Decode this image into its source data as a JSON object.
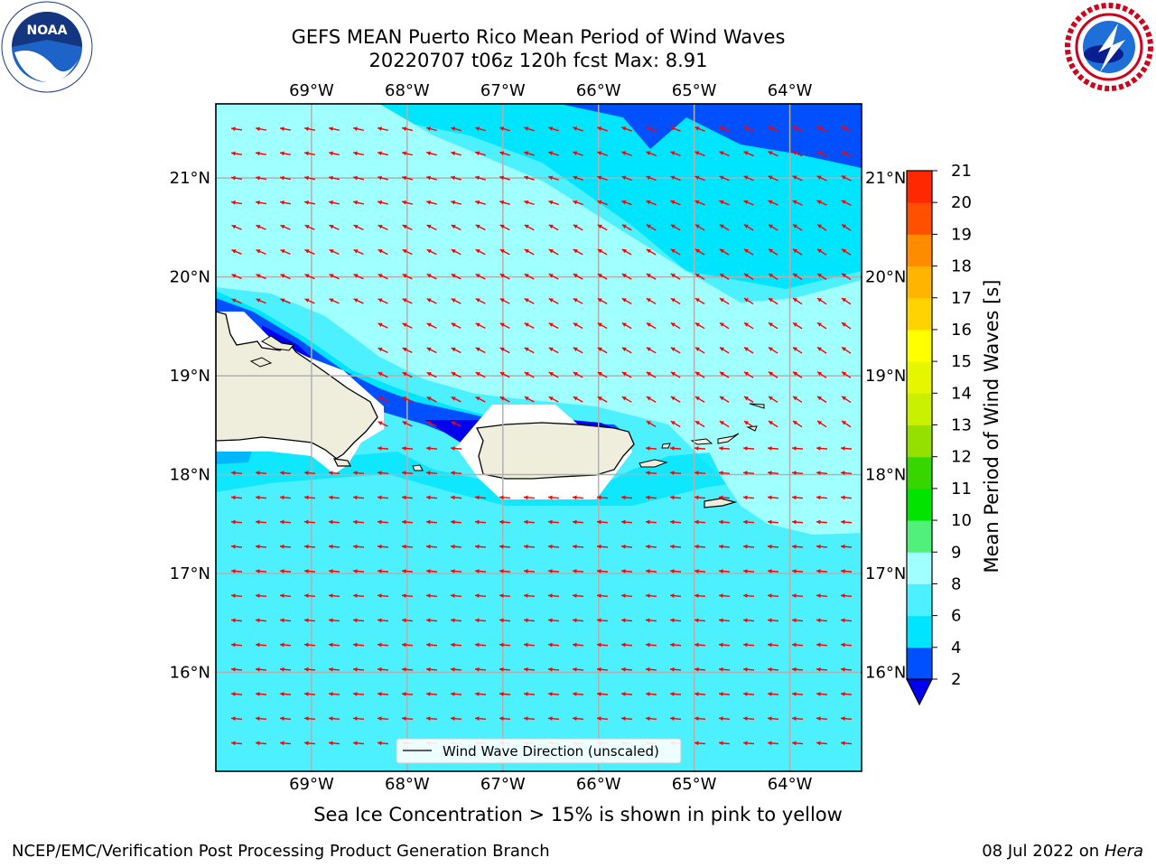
{
  "header": {
    "title_line1": "GEFS MEAN Puerto Rico Mean Period of Wind Waves",
    "title_line2": "20220707 t06z 120h fcst   Max: 8.91"
  },
  "logos": {
    "left": {
      "icon": "noaa-logo",
      "text": "NOAA"
    },
    "right": {
      "icon": "national-weather-service-logo",
      "text": "NATIONAL WEATHER SERVICE"
    }
  },
  "map": {
    "lon_labels": [
      "69°W",
      "68°W",
      "67°W",
      "66°W",
      "65°W",
      "64°W"
    ],
    "lat_labels": [
      "21°N",
      "20°N",
      "19°N",
      "18°N",
      "17°N",
      "16°N"
    ],
    "lon_range": [
      -70.0,
      -63.25
    ],
    "lat_range": [
      15.0,
      21.75
    ],
    "legend_label": "Wind Wave Direction (unscaled)",
    "arrow_color": "#ff0000",
    "land_color": "#efeddc",
    "grid_color": "#b0b0b0"
  },
  "colorbar": {
    "label": "Mean Period of Wind Waves [s]",
    "ticks": [
      "2",
      "4",
      "6",
      "8",
      "9",
      "10",
      "11",
      "12",
      "13",
      "14",
      "15",
      "16",
      "17",
      "18",
      "19",
      "20",
      "21"
    ],
    "colors": [
      "#0050ff",
      "#00e5ff",
      "#4cf0ff",
      "#a0ffff",
      "#50f07a",
      "#00e400",
      "#38d600",
      "#96e000",
      "#c8f000",
      "#e6f500",
      "#ffff00",
      "#ffd200",
      "#ffb400",
      "#ff8c00",
      "#ff5000",
      "#ff2800",
      "#ff0000"
    ],
    "under_color": "#0000f0"
  },
  "footer": {
    "ice_caption": "Sea Ice Concentration > 15% is shown in pink to yellow",
    "left": "NCEP/EMC/Verification Post Processing Product Generation Branch",
    "right_date": "08 Jul 2022 on ",
    "right_host": "Hera"
  }
}
